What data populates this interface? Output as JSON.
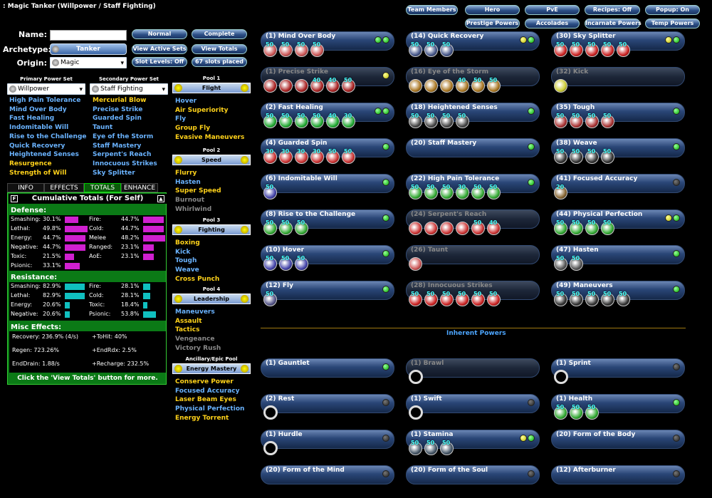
{
  "title": ": Magic Tanker (Willpower / Staff Fighting)",
  "top_buttons": [
    "Team Members",
    "Hero",
    "PvE",
    "Recipes: Off",
    "Popup: On",
    "Prestige Powers",
    "Accolades",
    "Incarnate Powers",
    "Temp Powers"
  ],
  "form": {
    "name_label": "Name:",
    "name_value": "",
    "archetype_label": "Archetype:",
    "archetype_value": "Tanker",
    "origin_label": "Origin:",
    "origin_value": "Magic"
  },
  "mid_buttons": [
    "Normal",
    "Complete",
    "View Active Sets",
    "View Totals",
    "Slot Levels: Off",
    "67 slots placed"
  ],
  "primary_header": "Primary Power Set",
  "secondary_header": "Secondary Power Set",
  "primary_set": "Willpower",
  "secondary_set": "Staff Fighting",
  "primary_powers": [
    {
      "t": "High Pain Tolerance",
      "c": "b"
    },
    {
      "t": "Mind Over Body",
      "c": "b"
    },
    {
      "t": "Fast Healing",
      "c": "b"
    },
    {
      "t": "Indomitable Will",
      "c": "b"
    },
    {
      "t": "Rise to the Challenge",
      "c": "b"
    },
    {
      "t": "Quick Recovery",
      "c": "b"
    },
    {
      "t": "Heightened Senses",
      "c": "b"
    },
    {
      "t": "Resurgence",
      "c": "y"
    },
    {
      "t": "Strength of Will",
      "c": "y"
    }
  ],
  "secondary_powers": [
    {
      "t": "Mercurial Blow",
      "c": "y"
    },
    {
      "t": "Precise Strike",
      "c": "b"
    },
    {
      "t": "Guarded Spin",
      "c": "b"
    },
    {
      "t": "Taunt",
      "c": "b"
    },
    {
      "t": "Eye of the Storm",
      "c": "b"
    },
    {
      "t": "Staff Mastery",
      "c": "b"
    },
    {
      "t": "Serpent's Reach",
      "c": "b"
    },
    {
      "t": "Innocuous Strikes",
      "c": "b"
    },
    {
      "t": "Sky Splitter",
      "c": "b"
    }
  ],
  "pools": [
    {
      "header": "Pool 1",
      "name": "Flight",
      "powers": [
        {
          "t": "Hover",
          "c": "b"
        },
        {
          "t": "Air Superiority",
          "c": "y"
        },
        {
          "t": "Fly",
          "c": "b"
        },
        {
          "t": "Group Fly",
          "c": "y"
        },
        {
          "t": "Evasive Maneuvers",
          "c": "y"
        }
      ]
    },
    {
      "header": "Pool 2",
      "name": "Speed",
      "powers": [
        {
          "t": "Flurry",
          "c": "y"
        },
        {
          "t": "Hasten",
          "c": "b"
        },
        {
          "t": "Super Speed",
          "c": "y"
        },
        {
          "t": "Burnout",
          "c": "g"
        },
        {
          "t": "Whirlwind",
          "c": "g"
        }
      ]
    },
    {
      "header": "Pool 3",
      "name": "Fighting",
      "powers": [
        {
          "t": "Boxing",
          "c": "y"
        },
        {
          "t": "Kick",
          "c": "b"
        },
        {
          "t": "Tough",
          "c": "b"
        },
        {
          "t": "Weave",
          "c": "b"
        },
        {
          "t": "Cross Punch",
          "c": "y"
        }
      ]
    },
    {
      "header": "Pool 4",
      "name": "Leadership",
      "powers": [
        {
          "t": "Maneuvers",
          "c": "b"
        },
        {
          "t": "Assault",
          "c": "y"
        },
        {
          "t": "Tactics",
          "c": "y"
        },
        {
          "t": "Vengeance",
          "c": "g"
        },
        {
          "t": "Victory Rush",
          "c": "g"
        }
      ]
    },
    {
      "header": "Ancillary/Epic Pool",
      "name": "Energy Mastery",
      "powers": [
        {
          "t": "Conserve Power",
          "c": "y"
        },
        {
          "t": "Focused Accuracy",
          "c": "b"
        },
        {
          "t": "Laser Beam Eyes",
          "c": "y"
        },
        {
          "t": "Physical Perfection",
          "c": "b"
        },
        {
          "t": "Energy Torrent",
          "c": "y"
        }
      ]
    }
  ],
  "tabs": [
    "INFO",
    "EFFECTS",
    "TOTALS",
    "ENHANCE"
  ],
  "totals_title": "Cumulative Totals (For Self)",
  "defense_label": "Defense:",
  "defense": [
    [
      "Smashing:",
      "30.1%",
      0.3
    ],
    [
      "Fire:",
      "44.7%",
      0.45
    ],
    [
      "Lethal:",
      "49.8%",
      0.5
    ],
    [
      "Cold:",
      "44.7%",
      0.45
    ],
    [
      "Energy:",
      "44.7%",
      0.45
    ],
    [
      "Melee",
      "48.2%",
      0.48
    ],
    [
      "Negative:",
      "44.7%",
      0.45
    ],
    [
      "Ranged:",
      "23.1%",
      0.23
    ],
    [
      "Toxic:",
      "21.5%",
      0.21
    ],
    [
      "AoE:",
      "23.1%",
      0.23
    ],
    [
      "Psionic:",
      "33.1%",
      0.33
    ]
  ],
  "resistance_label": "Resistance:",
  "resistance": [
    [
      "Smashing:",
      "82.9%",
      0.83
    ],
    [
      "Fire:",
      "28.1%",
      0.28
    ],
    [
      "Lethal:",
      "82.9%",
      0.83
    ],
    [
      "Cold:",
      "28.1%",
      0.28
    ],
    [
      "Energy:",
      "20.6%",
      0.21
    ],
    [
      "Toxic:",
      "18.4%",
      0.18
    ],
    [
      "Negative:",
      "20.6%",
      0.21
    ],
    [
      "Psionic:",
      "53.8%",
      0.54
    ]
  ],
  "misc_label": "Misc Effects:",
  "misc": [
    "Recovery: 236.9% (4/s)",
    "+ToHit: 40%",
    "Regen: 723.26%",
    "+EndRdx: 2.5%",
    "EndDrain: 1.88/s",
    "+Recharge: 232.5%"
  ],
  "totals_footer": "Click the 'View Totals' button for more.",
  "inherent_label": "Inherent Powers",
  "slots": [
    {
      "n": "(1) Mind Over Body",
      "on": true,
      "d": "gg",
      "e": [
        "50",
        "50",
        "50",
        "50"
      ],
      "c": "#c55"
    },
    {
      "n": "(14) Quick Recovery",
      "on": true,
      "d": "yg",
      "e": [
        "50",
        "50",
        "50"
      ],
      "c": "#458"
    },
    {
      "n": "(30) Sky Splitter",
      "on": true,
      "d": "yg",
      "e": [
        "50",
        "50",
        "50",
        "50",
        "50"
      ],
      "c": "#c22"
    },
    {
      "n": "(1) Precise Strike",
      "on": false,
      "d": "y",
      "e": [
        "",
        "",
        "",
        "40",
        "40",
        "50"
      ],
      "c": "#a22"
    },
    {
      "n": "(16) Eye of the Storm",
      "on": false,
      "d": "",
      "e": [
        "",
        "",
        "",
        "40",
        "50",
        "50"
      ],
      "c": "#a72"
    },
    {
      "n": "(32) Kick",
      "on": false,
      "d": "",
      "e": [
        ""
      ],
      "c": "#cc3"
    },
    {
      "n": "(2) Fast Healing",
      "on": true,
      "d": "gg",
      "e": [
        "50",
        "50",
        "50",
        "50",
        "40",
        "30"
      ],
      "c": "#2a3"
    },
    {
      "n": "(18) Heightened Senses",
      "on": true,
      "d": "g",
      "e": [
        "50",
        "50",
        "50",
        "50"
      ],
      "c": "#444"
    },
    {
      "n": "(35) Tough",
      "on": true,
      "d": "g",
      "e": [
        "50",
        "50",
        "50",
        "50"
      ],
      "c": "#a33"
    },
    {
      "n": "(4) Guarded Spin",
      "on": true,
      "d": "g",
      "e": [
        "30",
        "30",
        "30",
        "30",
        "50",
        "50"
      ],
      "c": "#c33"
    },
    {
      "n": "(20) Staff Mastery",
      "on": true,
      "d": "g",
      "e": [],
      "c": "#444"
    },
    {
      "n": "(38) Weave",
      "on": true,
      "d": "g",
      "e": [
        "50",
        "50",
        "50",
        "50"
      ],
      "c": "#333"
    },
    {
      "n": "(6) Indomitable Will",
      "on": true,
      "d": "g",
      "e": [
        "50"
      ],
      "c": "#44a"
    },
    {
      "n": "(22) High Pain Tolerance",
      "on": true,
      "d": "g",
      "e": [
        "50",
        "50",
        "50",
        "30",
        "50",
        "50"
      ],
      "c": "#3a3"
    },
    {
      "n": "(41) Focused Accuracy",
      "on": true,
      "d": "k",
      "e": [
        "20"
      ],
      "c": "#863"
    },
    {
      "n": "(8) Rise to the Challenge",
      "on": true,
      "d": "g",
      "e": [
        "50",
        "50",
        "50"
      ],
      "c": "#3a3"
    },
    {
      "n": "(24) Serpent's Reach",
      "on": false,
      "d": "",
      "e": [
        "",
        "",
        "",
        "",
        "50",
        "40"
      ],
      "c": "#c33"
    },
    {
      "n": "(44) Physical Perfection",
      "on": true,
      "d": "yg",
      "e": [
        "50",
        "50",
        "50",
        "50"
      ],
      "c": "#3a3"
    },
    {
      "n": "(10) Hover",
      "on": true,
      "d": "g",
      "e": [
        "50",
        "50",
        "50"
      ],
      "c": "#44a"
    },
    {
      "n": "(26) Taunt",
      "on": false,
      "d": "",
      "e": [
        ""
      ],
      "c": "#c55"
    },
    {
      "n": "(47) Hasten",
      "on": true,
      "d": "g",
      "e": [
        "50",
        "50"
      ],
      "c": "#555"
    },
    {
      "n": "(12) Fly",
      "on": true,
      "d": "g",
      "e": [
        "50"
      ],
      "c": "#558"
    },
    {
      "n": "(28) Innocuous Strikes",
      "on": false,
      "d": "",
      "e": [
        "50",
        "50",
        "50",
        "50",
        "50",
        "50"
      ],
      "c": "#c22"
    },
    {
      "n": "(49) Maneuvers",
      "on": true,
      "d": "g",
      "e": [
        "50",
        "50",
        "50",
        "50",
        "50"
      ],
      "c": "#333"
    },
    {
      "n": "(1) Gauntlet",
      "on": true,
      "d": "g",
      "e": [],
      "c": "#000"
    },
    {
      "n": "(1) Brawl",
      "on": false,
      "d": "",
      "e": [
        "ring"
      ],
      "c": "#000"
    },
    {
      "n": "(1) Sprint",
      "on": true,
      "d": "k",
      "e": [
        "ring"
      ],
      "c": "#000"
    },
    {
      "n": "(2) Rest",
      "on": true,
      "d": "k",
      "e": [
        "ring"
      ],
      "c": "#000"
    },
    {
      "n": "(1) Swift",
      "on": true,
      "d": "k",
      "e": [
        "ring"
      ],
      "c": "#000"
    },
    {
      "n": "(1) Health",
      "on": true,
      "d": "g",
      "e": [
        "50",
        "50",
        "50"
      ],
      "c": "#3a3"
    },
    {
      "n": "(1) Hurdle",
      "on": true,
      "d": "k",
      "e": [
        "ring"
      ],
      "c": "#000"
    },
    {
      "n": "(1) Stamina",
      "on": true,
      "d": "yg",
      "e": [
        "50",
        "50",
        "50"
      ],
      "c": "#456"
    },
    {
      "n": "(20) Form of the Body",
      "on": true,
      "d": "k",
      "e": [],
      "c": "#000"
    },
    {
      "n": "(20) Form of the Mind",
      "on": true,
      "d": "k",
      "e": [],
      "c": "#000"
    },
    {
      "n": "(20) Form of the Soul",
      "on": true,
      "d": "k",
      "e": [],
      "c": "#000"
    },
    {
      "n": "(12) Afterburner",
      "on": true,
      "d": "k",
      "e": [],
      "c": "#000"
    }
  ]
}
